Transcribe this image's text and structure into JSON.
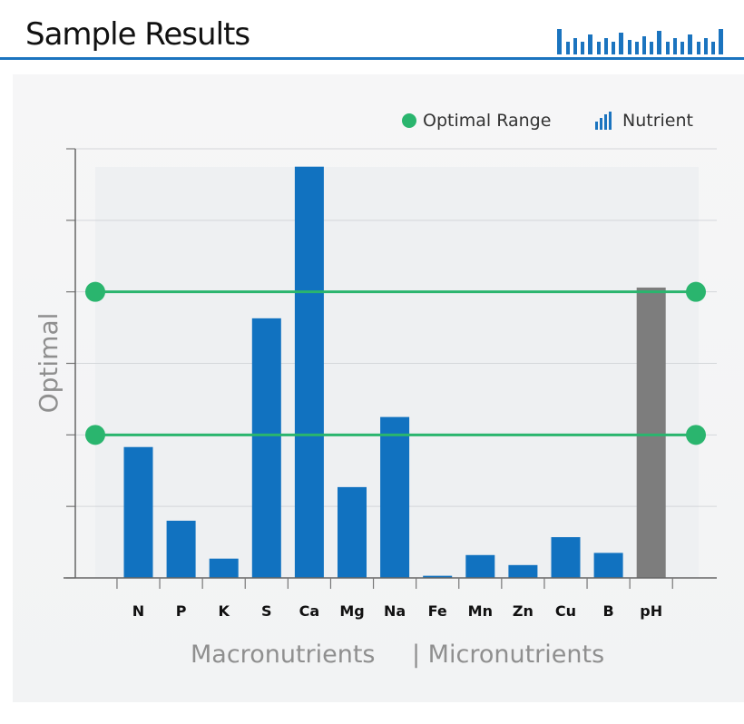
{
  "header": {
    "title": "Sample Results",
    "logo_icon": "bar-chart-logo-icon"
  },
  "legend": {
    "optimal_range": "Optimal Range",
    "nutrient": "Nutrient",
    "optimal_range_icon": "green-dot-icon",
    "nutrient_icon": "bar-chart-icon"
  },
  "colors": {
    "accent": "#1b74bf",
    "bar": "#1172c0",
    "ph_bar": "#7d7d7d",
    "optimal": "#2ab56e"
  },
  "chart_data": {
    "type": "bar",
    "categories": [
      "N",
      "P",
      "K",
      "S",
      "Ca",
      "Mg",
      "Na",
      "Fe",
      "Mn",
      "Zn",
      "Cu",
      "B",
      "pH"
    ],
    "values": [
      1.83,
      0.8,
      0.27,
      3.63,
      5.75,
      1.27,
      2.25,
      0.03,
      0.32,
      0.18,
      0.57,
      0.35,
      4.06
    ],
    "ylim": [
      0,
      6
    ],
    "optimal_range": [
      2,
      4
    ],
    "ylabel": "Optimal",
    "xlabel_groups": [
      "Macronutrients",
      "| Micronutrients"
    ],
    "highlight_category": "pH",
    "grid": true,
    "legend_position": "top-right"
  }
}
